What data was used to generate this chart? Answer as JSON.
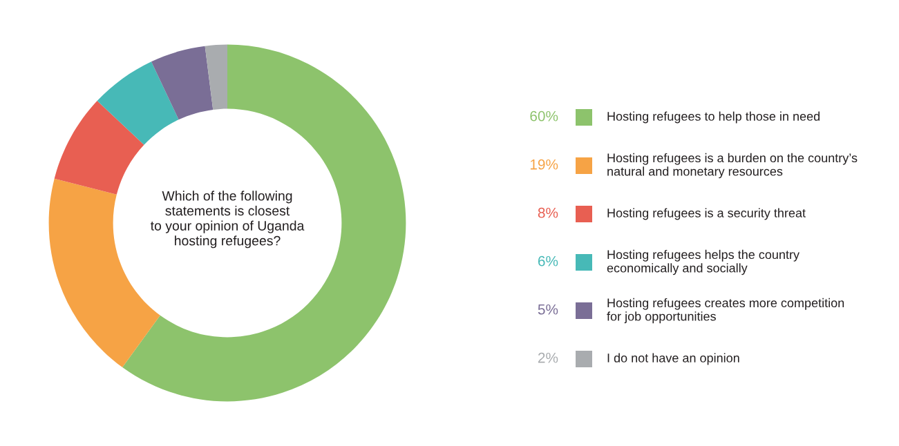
{
  "chart_data": {
    "type": "donut",
    "title": "Which of the following\nstatements is closest\nto your opinion of Uganda\nhosting refugees?",
    "categories": [
      "Hosting refugees to help those in need",
      "Hosting refugees is a burden on the country’s\nnatural and monetary resources",
      "Hosting refugees is a security threat",
      "Hosting refugees helps the country\neconomically and socially",
      "Hosting refugees creates more competition\nfor job opportunities",
      "I do not have an opinion"
    ],
    "values": [
      60,
      19,
      8,
      6,
      5,
      2
    ],
    "value_labels": [
      "60%",
      "19%",
      "8%",
      "6%",
      "5%",
      "2%"
    ],
    "colors": [
      "#8dc36c",
      "#f6a345",
      "#e85f52",
      "#47b9b7",
      "#7a6e96",
      "#a9acaf"
    ],
    "legend": "right"
  }
}
